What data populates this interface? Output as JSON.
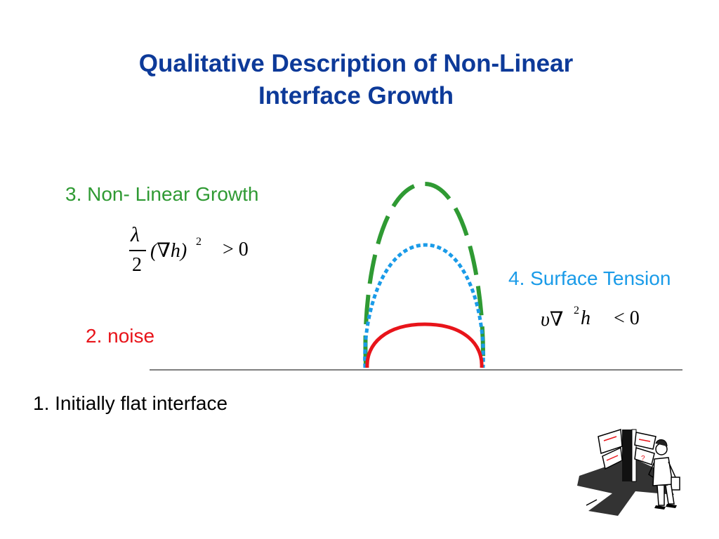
{
  "title": {
    "line1": "Qualitative Description of Non-Linear",
    "line2": "Interface Growth"
  },
  "labels": {
    "flat": "1. Initially flat interface",
    "noise": "2. noise",
    "nonlinear": "3. Non- Linear Growth",
    "tension": "4. Surface Tension"
  },
  "equations": {
    "nonlinear": {
      "numerator": "λ",
      "denominator": "2",
      "term": "(∇h)",
      "exponent": "2",
      "relation": "> 0"
    },
    "tension": {
      "term": "υ∇",
      "exponent": "2",
      "variable": "h",
      "relation": "< 0"
    }
  },
  "colors": {
    "title": "#0d3a99",
    "nonlinear": "#2f9a33",
    "tension": "#1a9be8",
    "noise": "#e8141a",
    "baseline": "#555555"
  },
  "clipart": {
    "icon": "person-at-signpost-icon",
    "sign_mark": "?"
  }
}
